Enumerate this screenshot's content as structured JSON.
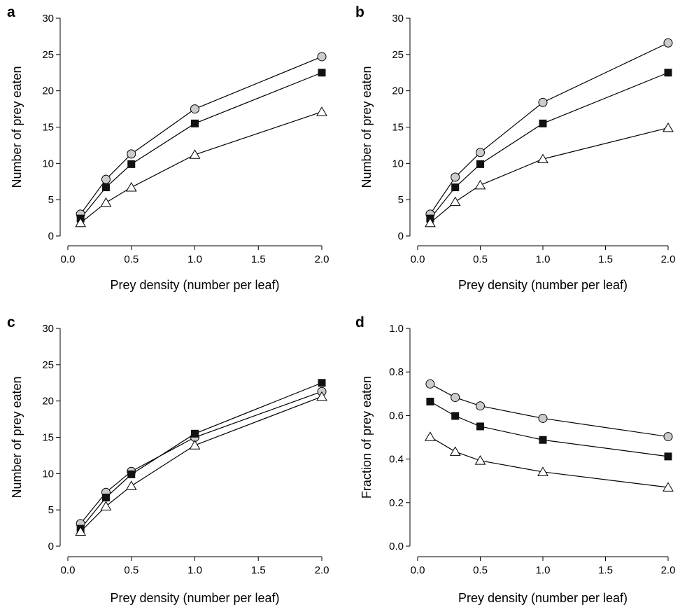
{
  "chart_data": [
    {
      "type": "line",
      "panel_label": "a",
      "xlabel": "Prey density (number per leaf)",
      "ylabel": "Number of prey eaten",
      "xlim": [
        0,
        2.0
      ],
      "ylim": [
        0,
        30
      ],
      "x_ticks": [
        "0.0",
        "0.5",
        "1.0",
        "1.5",
        "2.0"
      ],
      "y_ticks": [
        "0",
        "5",
        "10",
        "15",
        "20",
        "25",
        "30"
      ],
      "x": [
        0.1,
        0.3,
        0.5,
        1.0,
        2.0
      ],
      "series": [
        {
          "marker": "circle-gray",
          "values": [
            3.0,
            7.8,
            11.3,
            17.5,
            24.7
          ]
        },
        {
          "marker": "square-black",
          "values": [
            2.4,
            6.7,
            9.9,
            15.5,
            22.5
          ]
        },
        {
          "marker": "triangle-open",
          "values": [
            1.8,
            4.6,
            6.7,
            11.2,
            17.1
          ]
        }
      ]
    },
    {
      "type": "line",
      "panel_label": "b",
      "xlabel": "Prey density (number per leaf)",
      "ylabel": "Number of prey eaten",
      "xlim": [
        0,
        2.0
      ],
      "ylim": [
        0,
        30
      ],
      "x_ticks": [
        "0.0",
        "0.5",
        "1.0",
        "1.5",
        "2.0"
      ],
      "y_ticks": [
        "0",
        "5",
        "10",
        "15",
        "20",
        "25",
        "30"
      ],
      "x": [
        0.1,
        0.3,
        0.5,
        1.0,
        2.0
      ],
      "series": [
        {
          "marker": "circle-gray",
          "values": [
            3.0,
            8.1,
            11.5,
            18.4,
            26.6
          ]
        },
        {
          "marker": "square-black",
          "values": [
            2.4,
            6.7,
            9.9,
            15.5,
            22.5
          ]
        },
        {
          "marker": "triangle-open",
          "values": [
            1.8,
            4.7,
            7.0,
            10.6,
            14.9
          ]
        }
      ]
    },
    {
      "type": "line",
      "panel_label": "c",
      "xlabel": "Prey density (number per leaf)",
      "ylabel": "Number of prey eaten",
      "xlim": [
        0,
        2.0
      ],
      "ylim": [
        0,
        30
      ],
      "x_ticks": [
        "0.0",
        "0.5",
        "1.0",
        "1.5",
        "2.0"
      ],
      "y_ticks": [
        "0",
        "5",
        "10",
        "15",
        "20",
        "25",
        "30"
      ],
      "x": [
        0.1,
        0.3,
        0.5,
        1.0,
        2.0
      ],
      "series": [
        {
          "marker": "circle-gray",
          "values": [
            3.1,
            7.4,
            10.3,
            15.0,
            21.3
          ]
        },
        {
          "marker": "square-black",
          "values": [
            2.4,
            6.7,
            9.9,
            15.5,
            22.5
          ]
        },
        {
          "marker": "triangle-open",
          "values": [
            2.0,
            5.5,
            8.3,
            13.9,
            20.6
          ]
        }
      ]
    },
    {
      "type": "line",
      "panel_label": "d",
      "xlabel": "Prey density (number per leaf)",
      "ylabel": "Fraction of prey eaten",
      "xlim": [
        0,
        2.0
      ],
      "ylim": [
        0,
        1.0
      ],
      "x_ticks": [
        "0.0",
        "0.5",
        "1.0",
        "1.5",
        "2.0"
      ],
      "y_ticks": [
        "0.0",
        "0.2",
        "0.4",
        "0.6",
        "0.8",
        "1.0"
      ],
      "x": [
        0.1,
        0.3,
        0.5,
        1.0,
        2.0
      ],
      "series": [
        {
          "marker": "circle-gray",
          "values": [
            0.745,
            0.683,
            0.644,
            0.587,
            0.503
          ]
        },
        {
          "marker": "square-black",
          "values": [
            0.664,
            0.598,
            0.55,
            0.488,
            0.412
          ]
        },
        {
          "marker": "triangle-open",
          "values": [
            0.502,
            0.434,
            0.393,
            0.341,
            0.27
          ]
        }
      ]
    }
  ],
  "colors": {
    "axis": "#000000",
    "line": "#000000",
    "circle_fill": "#cccccc",
    "square_fill": "#111111",
    "triangle_fill": "#ffffff"
  }
}
